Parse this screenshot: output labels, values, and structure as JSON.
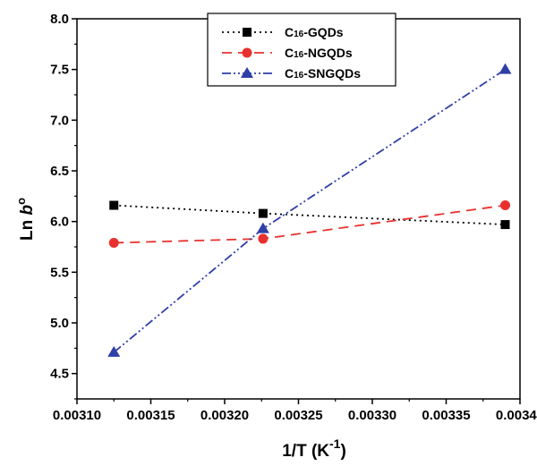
{
  "chart_data": {
    "type": "line",
    "xlabel": "1/T (K",
    "xlabel_sup": "-1",
    "xlabel_tail": ")",
    "ylabel": "Ln ",
    "ylabel_italic": "b",
    "ylabel_sup": "o",
    "xlim": [
      0.0031,
      0.0034
    ],
    "ylim": [
      4.25,
      8.0
    ],
    "xticks": [
      "0.00310",
      "0.00315",
      "0.00320",
      "0.00325",
      "0.00330",
      "0.00335",
      "0.00340"
    ],
    "yticks": [
      "4.5",
      "5.0",
      "5.5",
      "6.0",
      "6.5",
      "7.0",
      "7.5",
      "8.0"
    ],
    "grid": false,
    "legend_position": "top-center",
    "series": [
      {
        "name_prefix": "C",
        "name_sub": "16",
        "name_suffix": "-GQDs",
        "color": "#000000",
        "marker": "square",
        "line_style": "dotted",
        "x": [
          0.003125,
          0.003226,
          0.00339
        ],
        "y": [
          6.16,
          6.08,
          5.97
        ]
      },
      {
        "name_prefix": "C",
        "name_sub": "16",
        "name_suffix": "-NGQDs",
        "color": "#e8312f",
        "marker": "circle",
        "line_style": "dashed",
        "x": [
          0.003125,
          0.003226,
          0.00339
        ],
        "y": [
          5.79,
          5.83,
          6.16
        ]
      },
      {
        "name_prefix": "C",
        "name_sub": "16",
        "name_suffix": "-SNGQDs",
        "color": "#2f3fa8",
        "marker": "triangle",
        "line_style": "dash-dot-dot",
        "x": [
          0.003125,
          0.003226,
          0.00339
        ],
        "y": [
          4.71,
          5.93,
          7.5
        ]
      }
    ]
  }
}
